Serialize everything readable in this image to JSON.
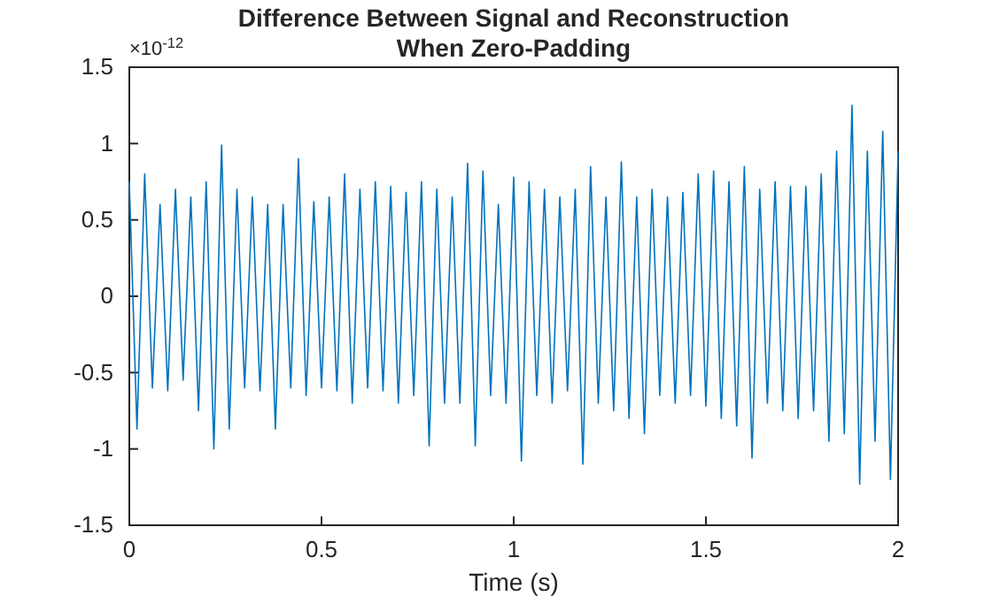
{
  "chart_data": {
    "type": "line",
    "title": "Difference Between Signal and Reconstruction\nWhen Zero-Padding",
    "xlabel": "Time (s)",
    "annotations": [
      "×10$^{-12}$"
    ],
    "x": [
      0,
      0.02,
      0.04,
      0.06,
      0.08,
      0.1,
      0.12,
      0.14,
      0.16,
      0.18,
      0.2,
      0.22,
      0.24,
      0.26,
      0.28,
      0.3,
      0.32,
      0.34,
      0.36,
      0.38,
      0.4,
      0.42,
      0.44,
      0.46,
      0.48,
      0.5,
      0.52,
      0.54,
      0.56,
      0.58,
      0.6,
      0.62,
      0.64,
      0.66,
      0.68,
      0.7,
      0.72,
      0.74,
      0.76,
      0.78,
      0.8,
      0.82,
      0.84,
      0.86,
      0.88,
      0.9,
      0.92,
      0.94,
      0.96,
      0.98,
      1,
      1.02,
      1.04,
      1.06,
      1.08,
      1.1,
      1.12,
      1.14,
      1.16,
      1.18,
      1.2,
      1.22,
      1.24,
      1.26,
      1.28,
      1.3,
      1.32,
      1.34,
      1.36,
      1.38,
      1.4,
      1.42,
      1.44,
      1.46,
      1.48,
      1.5,
      1.52,
      1.54,
      1.56,
      1.58,
      1.6,
      1.62,
      1.64,
      1.66,
      1.68,
      1.7,
      1.72,
      1.74,
      1.76,
      1.78,
      1.8,
      1.82,
      1.84,
      1.86,
      1.88,
      1.9,
      1.92,
      1.94,
      1.96,
      1.98,
      2
    ],
    "series": [
      {
        "color": "#0072bd",
        "values": [
          0.75,
          -0.87,
          0.8,
          -0.6,
          0.6,
          -0.62,
          0.7,
          -0.55,
          0.65,
          -0.75,
          0.75,
          -1.0,
          0.99,
          -0.87,
          0.7,
          -0.6,
          0.65,
          -0.62,
          0.6,
          -0.87,
          0.6,
          -0.6,
          0.9,
          -0.65,
          0.62,
          -0.6,
          0.65,
          -0.62,
          0.8,
          -0.7,
          0.7,
          -0.6,
          0.75,
          -0.62,
          0.72,
          -0.7,
          0.68,
          -0.65,
          0.75,
          -0.98,
          0.7,
          -0.7,
          0.65,
          -0.7,
          0.87,
          -0.98,
          0.82,
          -0.65,
          0.6,
          -0.7,
          0.78,
          -1.08,
          0.75,
          -0.65,
          0.7,
          -0.7,
          0.65,
          -0.62,
          0.7,
          -1.1,
          0.85,
          -0.7,
          0.65,
          -0.75,
          0.88,
          -0.8,
          0.65,
          -0.9,
          0.7,
          -0.65,
          0.65,
          -0.7,
          0.68,
          -0.65,
          0.8,
          -0.72,
          0.82,
          -0.8,
          0.75,
          -0.85,
          0.85,
          -1.06,
          0.7,
          -0.7,
          0.75,
          -0.75,
          0.72,
          -0.8,
          0.72,
          -0.75,
          0.8,
          -0.95,
          0.95,
          -0.9,
          1.25,
          -1.23,
          0.95,
          -0.95,
          1.08,
          -1.2,
          0.95
        ]
      }
    ],
    "xlim": [
      0,
      2
    ],
    "xticks": [
      0,
      0.5,
      1,
      1.5,
      2
    ],
    "ylim": [
      -1.5,
      1.5
    ],
    "yticks": [
      -1.5,
      -1,
      -0.5,
      0,
      0.5,
      1,
      1.5
    ],
    "grid": false,
    "marker": "none",
    "line_style": "solid"
  }
}
